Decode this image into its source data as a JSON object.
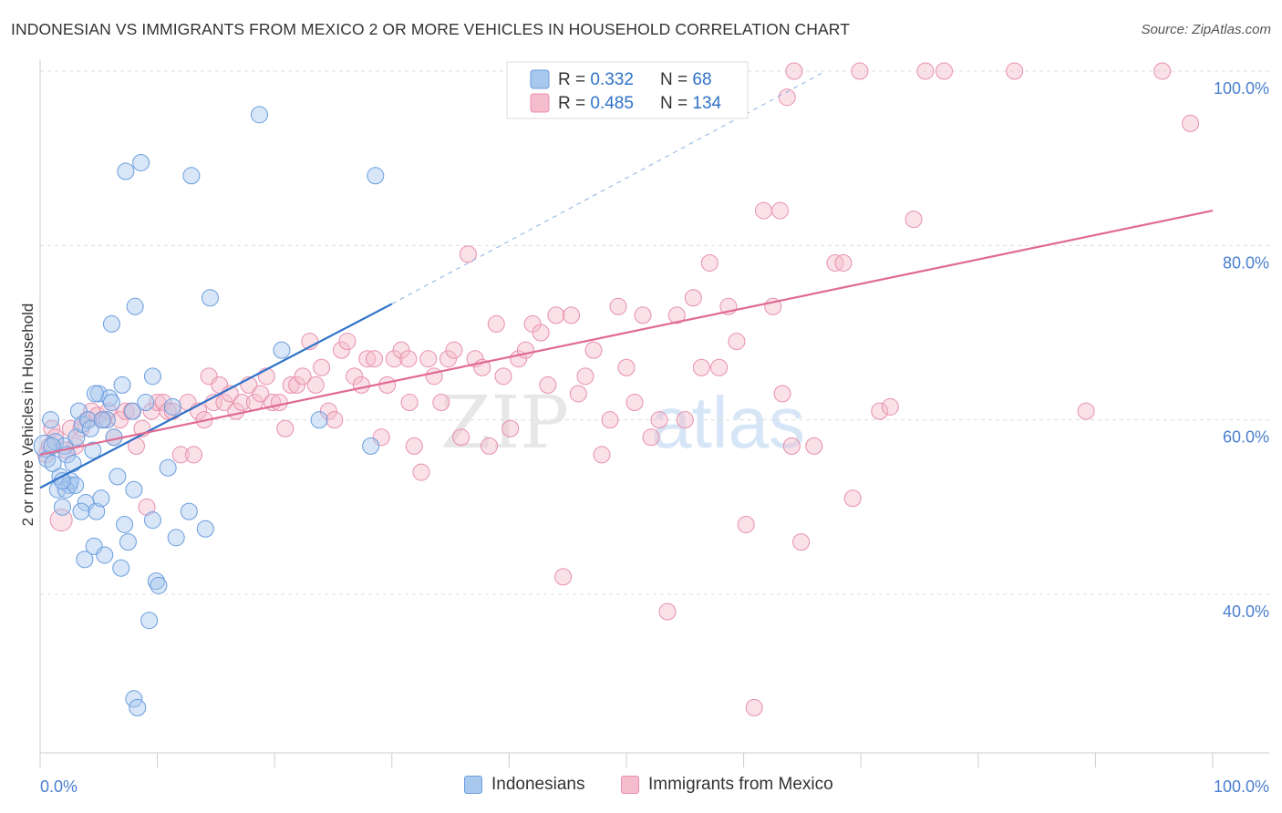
{
  "title": "INDONESIAN VS IMMIGRANTS FROM MEXICO 2 OR MORE VEHICLES IN HOUSEHOLD CORRELATION CHART",
  "source": "Source: ZipAtlas.com",
  "watermark": {
    "zip": "ZIP",
    "atlas": "atlas"
  },
  "colors": {
    "blue_fill": "#a8c8ee",
    "blue_stroke": "#6a9ddf",
    "blue_line": "#2f72c8",
    "pink_fill": "#f5bccd",
    "pink_stroke": "#e88fac",
    "pink_line": "#e06a93",
    "tick_label": "#4a7fd0",
    "grid": "#dddddd"
  },
  "legend_top": [
    {
      "r_label": "R = ",
      "r_value": "0.332",
      "n_label": "N = ",
      "n_value": "68"
    },
    {
      "r_label": "R = ",
      "r_value": "0.485",
      "n_label": "N = ",
      "n_value": "134"
    }
  ],
  "legend_bottom": [
    "Indonesians",
    "Immigrants from Mexico"
  ],
  "chart_data": {
    "type": "scatter",
    "title": "INDONESIAN VS IMMIGRANTS FROM MEXICO 2 OR MORE VEHICLES IN HOUSEHOLD CORRELATION CHART",
    "xlabel": "",
    "ylabel": "2 or more Vehicles in Household",
    "xlim": [
      0,
      100
    ],
    "ylim": [
      20,
      101
    ],
    "x_tick_labels": [
      "0.0%",
      "100.0%"
    ],
    "y_ticks": [
      40,
      60,
      80,
      100
    ],
    "y_tick_labels": [
      "40.0%",
      "60.0%",
      "80.0%",
      "100.0%"
    ],
    "grid": true,
    "series": [
      {
        "name": "Indonesians",
        "r": 0.332,
        "n": 68,
        "trend": {
          "x0": 0,
          "y0": 52.2,
          "x1": 30,
          "y1": 73.3,
          "dashed_to_x": 67,
          "dashed_to_y": 100
        },
        "points": [
          [
            0.4,
            57
          ],
          [
            0.6,
            55.5
          ],
          [
            0.9,
            60
          ],
          [
            1.1,
            55
          ],
          [
            1.3,
            57.5
          ],
          [
            1.5,
            52
          ],
          [
            1.7,
            53.5
          ],
          [
            1.9,
            50
          ],
          [
            2.1,
            57
          ],
          [
            2.3,
            56
          ],
          [
            2.5,
            52.5
          ],
          [
            2.6,
            53
          ],
          [
            2.8,
            55
          ],
          [
            3.1,
            58
          ],
          [
            3.3,
            61
          ],
          [
            3.6,
            59.5
          ],
          [
            3.9,
            50.5
          ],
          [
            4.1,
            60
          ],
          [
            4.3,
            59
          ],
          [
            4.5,
            56.5
          ],
          [
            4.6,
            45.5
          ],
          [
            4.8,
            49.5
          ],
          [
            5.0,
            63
          ],
          [
            5.2,
            51
          ],
          [
            5.5,
            44.5
          ],
          [
            5.7,
            60
          ],
          [
            5.9,
            62.5
          ],
          [
            6.1,
            71
          ],
          [
            6.3,
            58
          ],
          [
            6.6,
            53.5
          ],
          [
            6.9,
            43
          ],
          [
            7.2,
            48
          ],
          [
            7.5,
            46
          ],
          [
            7.9,
            61
          ],
          [
            8.0,
            28
          ],
          [
            8.3,
            27
          ],
          [
            8.6,
            89.5
          ],
          [
            9.0,
            62
          ],
          [
            9.3,
            37
          ],
          [
            9.6,
            48.5
          ],
          [
            9.9,
            41.5
          ],
          [
            10.1,
            41
          ],
          [
            10.9,
            54.5
          ],
          [
            11.3,
            61.5
          ],
          [
            11.6,
            46.5
          ],
          [
            12.7,
            49.5
          ],
          [
            14.1,
            47.5
          ],
          [
            14.5,
            74
          ],
          [
            18.7,
            95
          ],
          [
            20.6,
            68
          ],
          [
            23.8,
            60
          ],
          [
            28.2,
            57
          ],
          [
            28.6,
            88
          ],
          [
            12.9,
            88
          ],
          [
            8.1,
            73
          ],
          [
            7.0,
            64
          ],
          [
            4.7,
            63
          ],
          [
            3.8,
            44
          ],
          [
            7.3,
            88.5
          ],
          [
            9.6,
            65
          ],
          [
            6.1,
            62
          ],
          [
            1.0,
            57
          ],
          [
            2.2,
            52
          ],
          [
            5.3,
            60
          ],
          [
            3.0,
            52.5
          ],
          [
            8.0,
            52
          ],
          [
            3.5,
            49.5
          ],
          [
            1.9,
            53
          ]
        ]
      },
      {
        "name": "Immigrants from Mexico",
        "r": 0.485,
        "n": 134,
        "trend": {
          "x0": 0,
          "y0": 56,
          "x1": 100,
          "y1": 84
        },
        "points": [
          [
            0.5,
            56
          ],
          [
            0.8,
            57
          ],
          [
            1.0,
            59
          ],
          [
            1.3,
            58
          ],
          [
            1.8,
            48.5
          ],
          [
            2.2,
            56.5
          ],
          [
            2.6,
            59
          ],
          [
            3.0,
            57
          ],
          [
            3.5,
            59
          ],
          [
            4.0,
            60
          ],
          [
            4.4,
            61
          ],
          [
            4.9,
            60.5
          ],
          [
            5.4,
            60
          ],
          [
            5.8,
            61
          ],
          [
            6.3,
            58
          ],
          [
            6.8,
            60
          ],
          [
            7.3,
            61
          ],
          [
            7.8,
            61
          ],
          [
            8.2,
            57
          ],
          [
            8.7,
            59
          ],
          [
            9.1,
            50
          ],
          [
            9.5,
            61
          ],
          [
            10.0,
            62
          ],
          [
            10.5,
            62
          ],
          [
            10.9,
            61
          ],
          [
            11.3,
            61
          ],
          [
            12.0,
            56
          ],
          [
            12.6,
            62
          ],
          [
            13.1,
            56
          ],
          [
            13.5,
            61
          ],
          [
            14.0,
            60
          ],
          [
            14.4,
            65
          ],
          [
            14.8,
            62
          ],
          [
            15.3,
            64
          ],
          [
            15.7,
            62
          ],
          [
            16.2,
            63
          ],
          [
            16.7,
            61
          ],
          [
            17.2,
            62
          ],
          [
            17.8,
            64
          ],
          [
            18.3,
            62
          ],
          [
            18.8,
            63
          ],
          [
            19.3,
            65
          ],
          [
            19.8,
            62
          ],
          [
            20.4,
            62
          ],
          [
            20.9,
            59
          ],
          [
            21.4,
            64
          ],
          [
            21.9,
            64
          ],
          [
            22.4,
            65
          ],
          [
            23.0,
            69
          ],
          [
            23.5,
            64
          ],
          [
            24.0,
            66
          ],
          [
            24.6,
            61
          ],
          [
            25.1,
            60
          ],
          [
            25.7,
            68
          ],
          [
            26.2,
            69
          ],
          [
            26.8,
            65
          ],
          [
            27.4,
            64
          ],
          [
            27.9,
            67
          ],
          [
            28.5,
            67
          ],
          [
            29.1,
            58
          ],
          [
            29.6,
            64
          ],
          [
            30.2,
            67
          ],
          [
            30.8,
            68
          ],
          [
            31.4,
            67
          ],
          [
            31.9,
            57
          ],
          [
            32.5,
            54
          ],
          [
            33.1,
            67
          ],
          [
            33.6,
            65
          ],
          [
            34.2,
            62
          ],
          [
            34.8,
            67
          ],
          [
            35.3,
            68
          ],
          [
            35.9,
            58
          ],
          [
            36.5,
            79
          ],
          [
            37.1,
            67
          ],
          [
            37.7,
            66
          ],
          [
            38.3,
            57
          ],
          [
            38.9,
            71
          ],
          [
            39.5,
            65
          ],
          [
            40.1,
            59
          ],
          [
            40.8,
            67
          ],
          [
            41.4,
            68
          ],
          [
            42.0,
            71
          ],
          [
            42.7,
            70
          ],
          [
            43.3,
            64
          ],
          [
            44.0,
            72
          ],
          [
            44.6,
            42
          ],
          [
            45.3,
            72
          ],
          [
            45.9,
            63
          ],
          [
            46.5,
            65
          ],
          [
            47.2,
            68
          ],
          [
            47.9,
            56
          ],
          [
            48.6,
            60
          ],
          [
            49.3,
            73
          ],
          [
            50.0,
            66
          ],
          [
            50.7,
            62
          ],
          [
            51.4,
            72
          ],
          [
            52.1,
            58
          ],
          [
            52.8,
            60
          ],
          [
            53.5,
            38
          ],
          [
            54.3,
            72
          ],
          [
            55.0,
            60
          ],
          [
            55.7,
            74
          ],
          [
            56.4,
            66
          ],
          [
            57.1,
            78
          ],
          [
            57.9,
            66
          ],
          [
            58.7,
            73
          ],
          [
            59.4,
            69
          ],
          [
            60.2,
            48
          ],
          [
            60.9,
            27
          ],
          [
            61.7,
            84
          ],
          [
            62.5,
            73
          ],
          [
            63.3,
            63
          ],
          [
            64.1,
            57
          ],
          [
            64.9,
            46
          ],
          [
            66.0,
            57
          ],
          [
            67.8,
            78
          ],
          [
            68.5,
            78
          ],
          [
            69.3,
            51
          ],
          [
            71.6,
            61
          ],
          [
            72.5,
            61.5
          ],
          [
            74.5,
            83
          ],
          [
            54.7,
            100
          ],
          [
            58.9,
            100
          ],
          [
            63.1,
            84
          ],
          [
            63.7,
            97
          ],
          [
            64.3,
            100
          ],
          [
            69.9,
            100
          ],
          [
            75.5,
            100
          ],
          [
            77.1,
            100
          ],
          [
            83.1,
            100
          ],
          [
            89.2,
            61
          ],
          [
            95.7,
            100
          ],
          [
            98.1,
            94
          ],
          [
            31.5,
            62
          ]
        ]
      }
    ]
  }
}
